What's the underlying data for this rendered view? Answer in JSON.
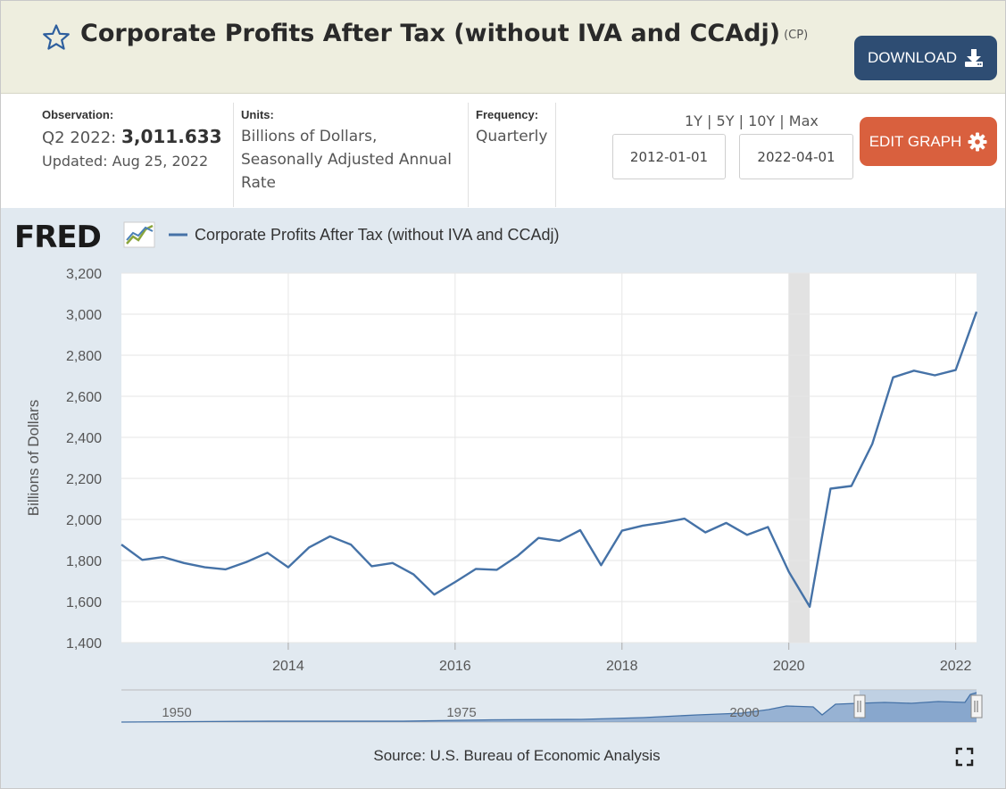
{
  "header": {
    "title": "Corporate Profits After Tax (without IVA and CCAdj)",
    "series_id": "(CP)",
    "download_label": "DOWNLOAD"
  },
  "observation": {
    "label": "Observation:",
    "period": "Q2 2022:",
    "value": "3,011.633",
    "updated": "Updated: Aug 25, 2022"
  },
  "units": {
    "label": "Units:",
    "lines": [
      "Billions of Dollars,",
      "Seasonally Adjusted Annual",
      "Rate"
    ]
  },
  "frequency": {
    "label": "Frequency:",
    "value": "Quarterly"
  },
  "range_links": [
    "1Y",
    "5Y",
    "10Y",
    "Max"
  ],
  "range_sep": "|",
  "dates": {
    "start": "2012-01-01",
    "end": "2022-04-01"
  },
  "edit_label": "EDIT GRAPH",
  "logo": "FRED",
  "source": "Source: U.S. Bureau of Economic Analysis",
  "colors": {
    "series": "#4572a7",
    "header_bg": "#eeeedf",
    "graph_bg": "#e1e9f0",
    "download_btn": "#2e4d73",
    "edit_btn": "#d9603e",
    "recession": "#e2e2e2"
  },
  "chart_data": {
    "type": "line",
    "title": "",
    "xlabel": "",
    "ylabel": "Billions of Dollars",
    "ylim": [
      1400,
      3200
    ],
    "yticks": [
      1400,
      1600,
      1800,
      2000,
      2200,
      2400,
      2600,
      2800,
      3000,
      3200
    ],
    "ytick_labels": [
      "1,400",
      "1,600",
      "1,800",
      "2,000",
      "2,200",
      "2,400",
      "2,600",
      "2,800",
      "3,000",
      "3,200"
    ],
    "xlim": [
      2012.0,
      2022.25
    ],
    "xticks": [
      2014,
      2016,
      2018,
      2020,
      2022
    ],
    "xtick_labels": [
      "2014",
      "2016",
      "2018",
      "2020",
      "2022"
    ],
    "legend": "top-left",
    "grid": true,
    "recession_shading": [
      [
        2020.0,
        2020.25
      ]
    ],
    "series": [
      {
        "name": "Corporate Profits After Tax (without IVA and CCAdj)",
        "x": [
          "2012-01-01",
          "2012-04-01",
          "2012-07-01",
          "2012-10-01",
          "2013-01-01",
          "2013-04-01",
          "2013-07-01",
          "2013-10-01",
          "2014-01-01",
          "2014-04-01",
          "2014-07-01",
          "2014-10-01",
          "2015-01-01",
          "2015-04-01",
          "2015-07-01",
          "2015-10-01",
          "2016-01-01",
          "2016-04-01",
          "2016-07-01",
          "2016-10-01",
          "2017-01-01",
          "2017-04-01",
          "2017-07-01",
          "2017-10-01",
          "2018-01-01",
          "2018-04-01",
          "2018-07-01",
          "2018-10-01",
          "2019-01-01",
          "2019-04-01",
          "2019-07-01",
          "2019-10-01",
          "2020-01-01",
          "2020-04-01",
          "2020-07-01",
          "2020-10-01",
          "2021-01-01",
          "2021-04-01",
          "2021-07-01",
          "2021-10-01",
          "2022-01-01",
          "2022-04-01"
        ],
        "values": [
          1878,
          1803,
          1817,
          1788,
          1767,
          1757,
          1793,
          1838,
          1767,
          1864,
          1918,
          1878,
          1772,
          1788,
          1733,
          1634,
          1695,
          1759,
          1755,
          1823,
          1910,
          1895,
          1948,
          1777,
          1945,
          1970,
          1985,
          2004,
          1937,
          1983,
          1925,
          1963,
          1745,
          1575,
          2150,
          2163,
          2368,
          2692,
          2725,
          2702,
          2728,
          3011.633
        ]
      }
    ],
    "navigator": {
      "xtick_labels": [
        "1950",
        "1975",
        "2000"
      ]
    }
  }
}
